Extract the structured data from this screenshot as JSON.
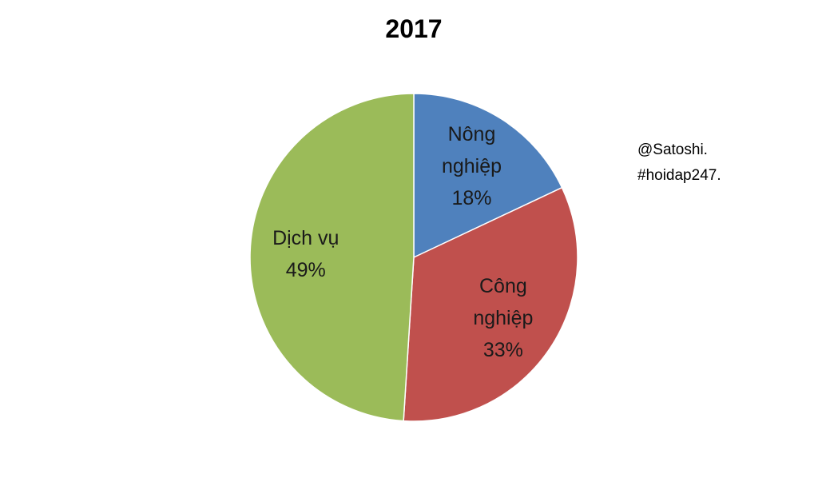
{
  "chart_data": {
    "type": "pie",
    "title": "2017",
    "categories": [
      "Nông nghiệp",
      "Công nghiệp",
      "Dịch vụ"
    ],
    "values": [
      18,
      33,
      49
    ],
    "value_labels": [
      "18%",
      "33%",
      "49%"
    ],
    "colors": [
      "#4f81bd",
      "#c0504d",
      "#9bbb59"
    ],
    "annotations": [
      "@Satoshi.",
      "#hoidap247."
    ]
  }
}
